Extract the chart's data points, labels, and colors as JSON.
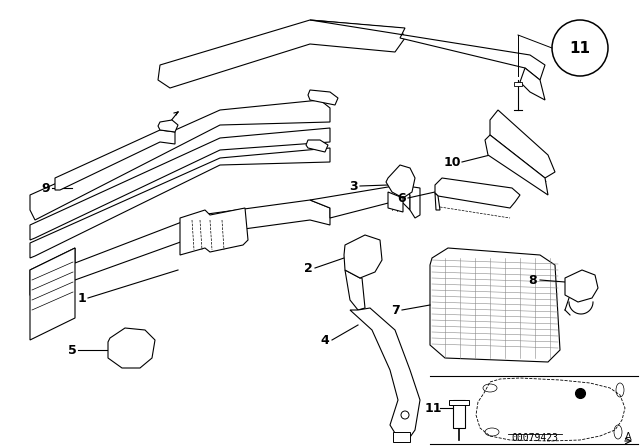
{
  "bg_color": "#ffffff",
  "line_color": "#000000",
  "fig_width": 6.4,
  "fig_height": 4.48,
  "dpi": 100,
  "part_number_text": "00079423"
}
